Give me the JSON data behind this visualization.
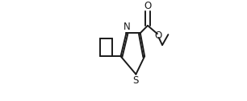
{
  "background_color": "#ffffff",
  "bond_color": "#1a1a1a",
  "atom_color": "#1a1a1a",
  "figsize": [
    3.06,
    1.26
  ],
  "dpi": 100,
  "S_label": "S",
  "N_label": "N",
  "O_carbonyl_label": "O",
  "O_ester_label": "O",
  "lw": 1.4
}
